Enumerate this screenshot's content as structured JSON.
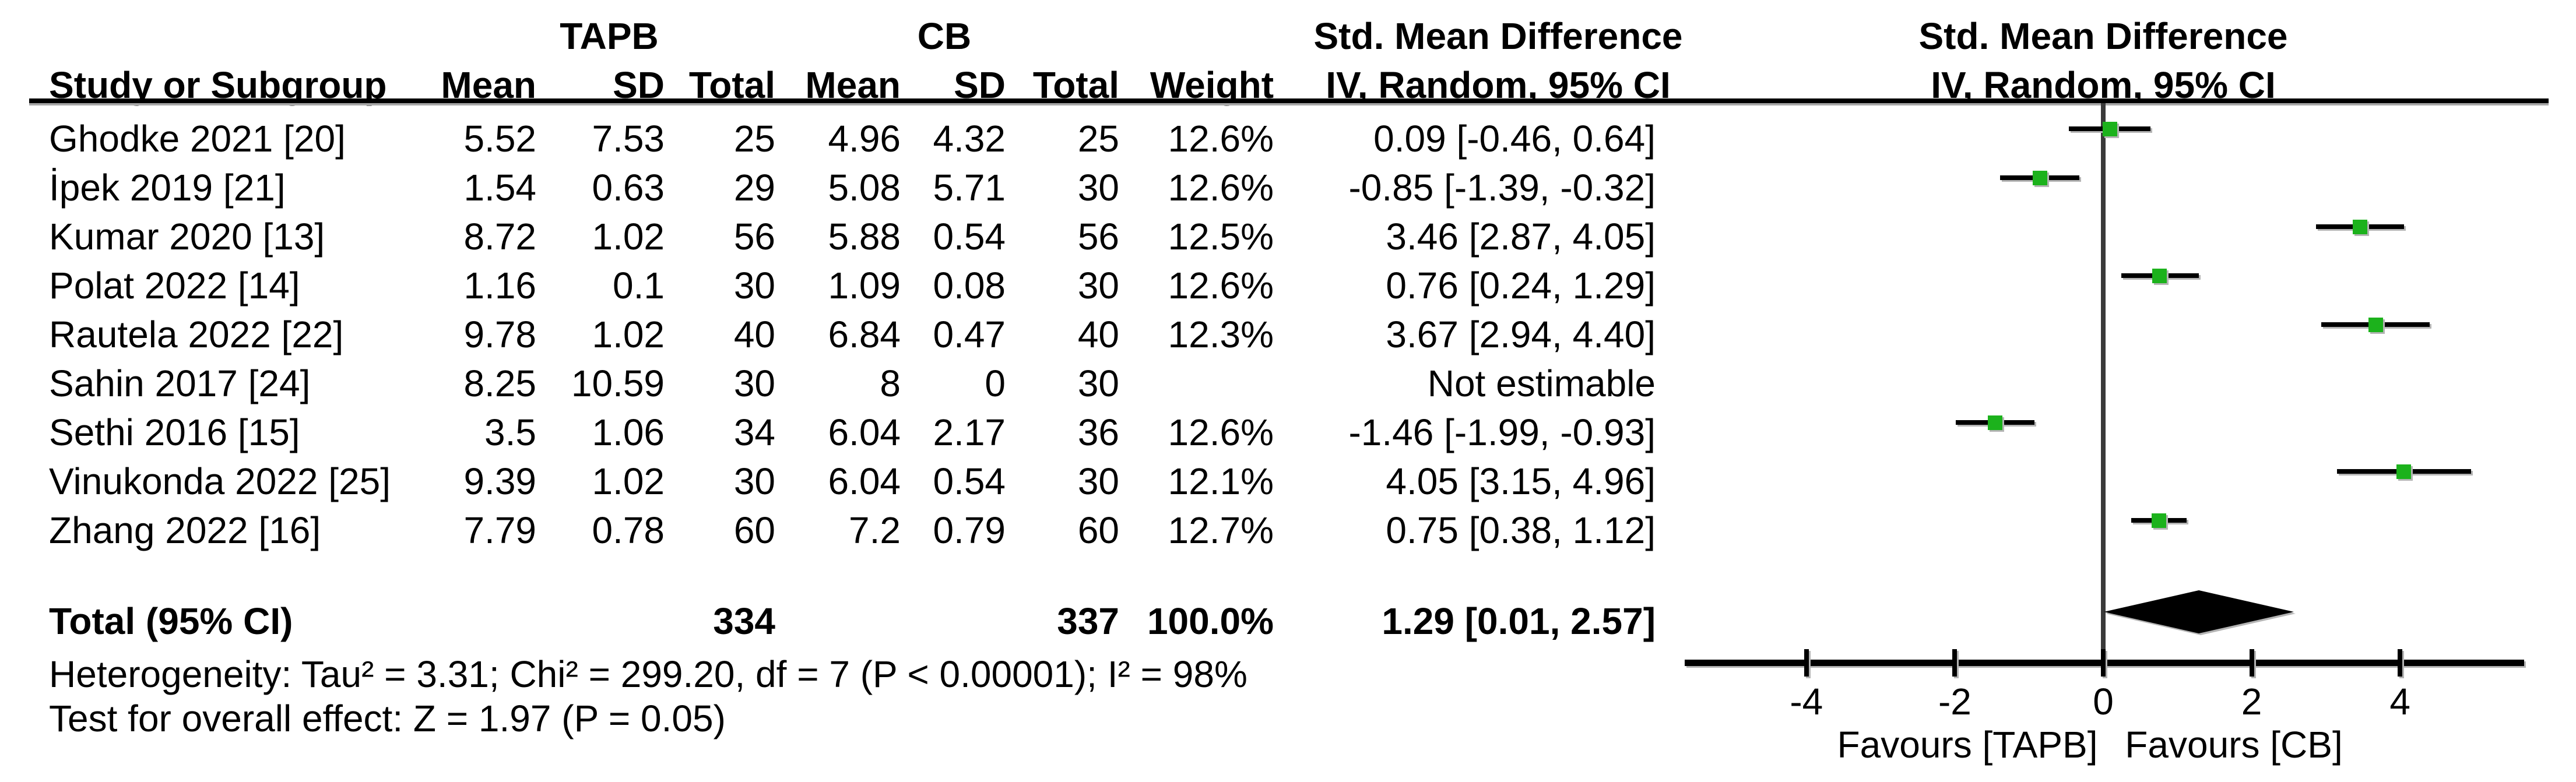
{
  "headers": {
    "group_tapb": "TAPB",
    "group_cb": "CB",
    "study_col": "Study or Subgroup",
    "mean_col": "Mean",
    "sd_col": "SD",
    "total_col": "Total",
    "weight_col": "Weight",
    "effect_line1": "Std. Mean Difference",
    "effect_line2": "IV, Random, 95% CI",
    "plot_line1": "Std. Mean Difference",
    "plot_line2": "IV, Random, 95% CI"
  },
  "chart_data": {
    "type": "forest",
    "effect_measure": "Std. Mean Difference",
    "model": "IV, Random, 95% CI",
    "x_axis": {
      "ticks": [
        -4,
        -2,
        0,
        2,
        4
      ],
      "xlim": [
        -5.6,
        5.7
      ],
      "zero_reference": 0,
      "favours_left": "Favours [TAPB]",
      "favours_right": "Favours [CB]"
    },
    "marker_color": "#1CB21C",
    "diamond_color": "#000000",
    "studies": [
      {
        "name": "Ghodke 2021 [20]",
        "tapb_mean": "5.52",
        "tapb_sd": "7.53",
        "tapb_total": "25",
        "cb_mean": "4.96",
        "cb_sd": "4.32",
        "cb_total": "25",
        "weight": "12.6%",
        "ci_text": "0.09 [-0.46, 0.64]",
        "est": 0.09,
        "lo": -0.46,
        "hi": 0.64
      },
      {
        "name": "İpek 2019 [21]",
        "tapb_mean": "1.54",
        "tapb_sd": "0.63",
        "tapb_total": "29",
        "cb_mean": "5.08",
        "cb_sd": "5.71",
        "cb_total": "30",
        "weight": "12.6%",
        "ci_text": "-0.85 [-1.39, -0.32]",
        "est": -0.85,
        "lo": -1.39,
        "hi": -0.32
      },
      {
        "name": "Kumar 2020 [13]",
        "tapb_mean": "8.72",
        "tapb_sd": "1.02",
        "tapb_total": "56",
        "cb_mean": "5.88",
        "cb_sd": "0.54",
        "cb_total": "56",
        "weight": "12.5%",
        "ci_text": "3.46 [2.87, 4.05]",
        "est": 3.46,
        "lo": 2.87,
        "hi": 4.05
      },
      {
        "name": "Polat 2022 [14]",
        "tapb_mean": "1.16",
        "tapb_sd": "0.1",
        "tapb_total": "30",
        "cb_mean": "1.09",
        "cb_sd": "0.08",
        "cb_total": "30",
        "weight": "12.6%",
        "ci_text": "0.76 [0.24, 1.29]",
        "est": 0.76,
        "lo": 0.24,
        "hi": 1.29
      },
      {
        "name": "Rautela 2022 [22]",
        "tapb_mean": "9.78",
        "tapb_sd": "1.02",
        "tapb_total": "40",
        "cb_mean": "6.84",
        "cb_sd": "0.47",
        "cb_total": "40",
        "weight": "12.3%",
        "ci_text": "3.67 [2.94, 4.40]",
        "est": 3.67,
        "lo": 2.94,
        "hi": 4.4
      },
      {
        "name": "Sahin 2017 [24]",
        "tapb_mean": "8.25",
        "tapb_sd": "10.59",
        "tapb_total": "30",
        "cb_mean": "8",
        "cb_sd": "0",
        "cb_total": "30",
        "weight": "",
        "ci_text": "Not estimable",
        "est": null,
        "lo": null,
        "hi": null
      },
      {
        "name": "Sethi 2016 [15]",
        "tapb_mean": "3.5",
        "tapb_sd": "1.06",
        "tapb_total": "34",
        "cb_mean": "6.04",
        "cb_sd": "2.17",
        "cb_total": "36",
        "weight": "12.6%",
        "ci_text": "-1.46 [-1.99, -0.93]",
        "est": -1.46,
        "lo": -1.99,
        "hi": -0.93
      },
      {
        "name": "Vinukonda 2022 [25]",
        "tapb_mean": "9.39",
        "tapb_sd": "1.02",
        "tapb_total": "30",
        "cb_mean": "6.04",
        "cb_sd": "0.54",
        "cb_total": "30",
        "weight": "12.1%",
        "ci_text": "4.05 [3.15, 4.96]",
        "est": 4.05,
        "lo": 3.15,
        "hi": 4.96
      },
      {
        "name": "Zhang 2022 [16]",
        "tapb_mean": "7.79",
        "tapb_sd": "0.78",
        "tapb_total": "60",
        "cb_mean": "7.2",
        "cb_sd": "0.79",
        "cb_total": "60",
        "weight": "12.7%",
        "ci_text": "0.75 [0.38, 1.12]",
        "est": 0.75,
        "lo": 0.38,
        "hi": 1.12
      }
    ],
    "total": {
      "label": "Total (95% CI)",
      "tapb_total": "334",
      "cb_total": "337",
      "weight": "100.0%",
      "ci_text": "1.29 [0.01, 2.57]",
      "est": 1.29,
      "lo": 0.01,
      "hi": 2.57
    }
  },
  "footnotes": {
    "heterogeneity": "Heterogeneity: Tau² = 3.31; Chi² = 299.20, df = 7 (P < 0.00001); I² = 98%",
    "overall_effect": "Test for overall effect: Z = 1.97 (P = 0.05)"
  }
}
